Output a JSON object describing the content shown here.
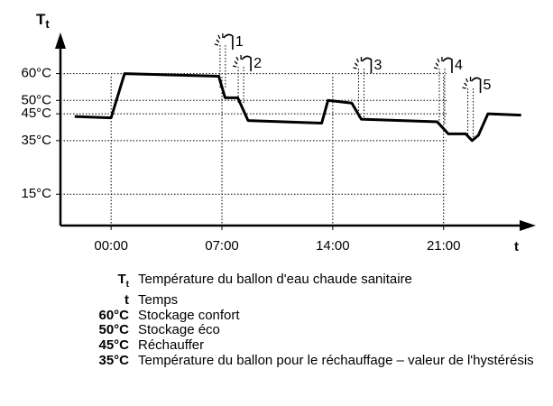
{
  "chart_data": {
    "type": "line",
    "y_axis_label": {
      "symbol": "T",
      "subscript": "t"
    },
    "x_axis_label": "t",
    "xlim": [
      -3.2,
      26.6
    ],
    "ylim": [
      3.3,
      74
    ],
    "xticks": [
      {
        "value": 0,
        "label": "00:00"
      },
      {
        "value": 7,
        "label": "07:00"
      },
      {
        "value": 14,
        "label": "14:00"
      },
      {
        "value": 21,
        "label": "21:00"
      }
    ],
    "yticks": [
      {
        "value": 60,
        "label": "60°C"
      },
      {
        "value": 50,
        "label": "50°C"
      },
      {
        "value": 45,
        "label": "45°C"
      },
      {
        "value": 35,
        "label": "35°C"
      },
      {
        "value": 15,
        "label": "15°C"
      }
    ],
    "grid": true,
    "series": [
      {
        "color": "#000000",
        "x": [
          -2.3,
          0,
          0.85,
          6.8,
          7.2,
          8,
          8.65,
          13.3,
          13.7,
          15.2,
          15.8,
          20.6,
          21.3,
          22.4,
          22.8,
          23.2,
          23.8,
          25.9
        ],
        "values": [
          44,
          43.5,
          60,
          59,
          51,
          51,
          42.5,
          41.5,
          50,
          49,
          43,
          42,
          37.5,
          37.5,
          35,
          37,
          45,
          44.5
        ]
      }
    ],
    "annotations": [
      {
        "label": "1",
        "x": 7.05
      },
      {
        "label": "2",
        "x": 8.2
      },
      {
        "label": "3",
        "x": 15.8
      },
      {
        "label": "4",
        "x": 20.9
      },
      {
        "label": "5",
        "x": 22.7
      }
    ],
    "legend": [
      {
        "symbol": "T",
        "subscript": "t",
        "text": "Température du ballon d'eau chaude sanitaire"
      },
      {
        "symbol": "t",
        "text": "Temps"
      },
      {
        "symbol": "60°C",
        "text": "Stockage confort"
      },
      {
        "symbol": "50°C",
        "text": "Stockage éco"
      },
      {
        "symbol": "45°C",
        "text": "Réchauffer"
      },
      {
        "symbol": "35°C",
        "text": "Température du ballon pour le réchauffage – valeur de l'hystérésis"
      }
    ]
  }
}
